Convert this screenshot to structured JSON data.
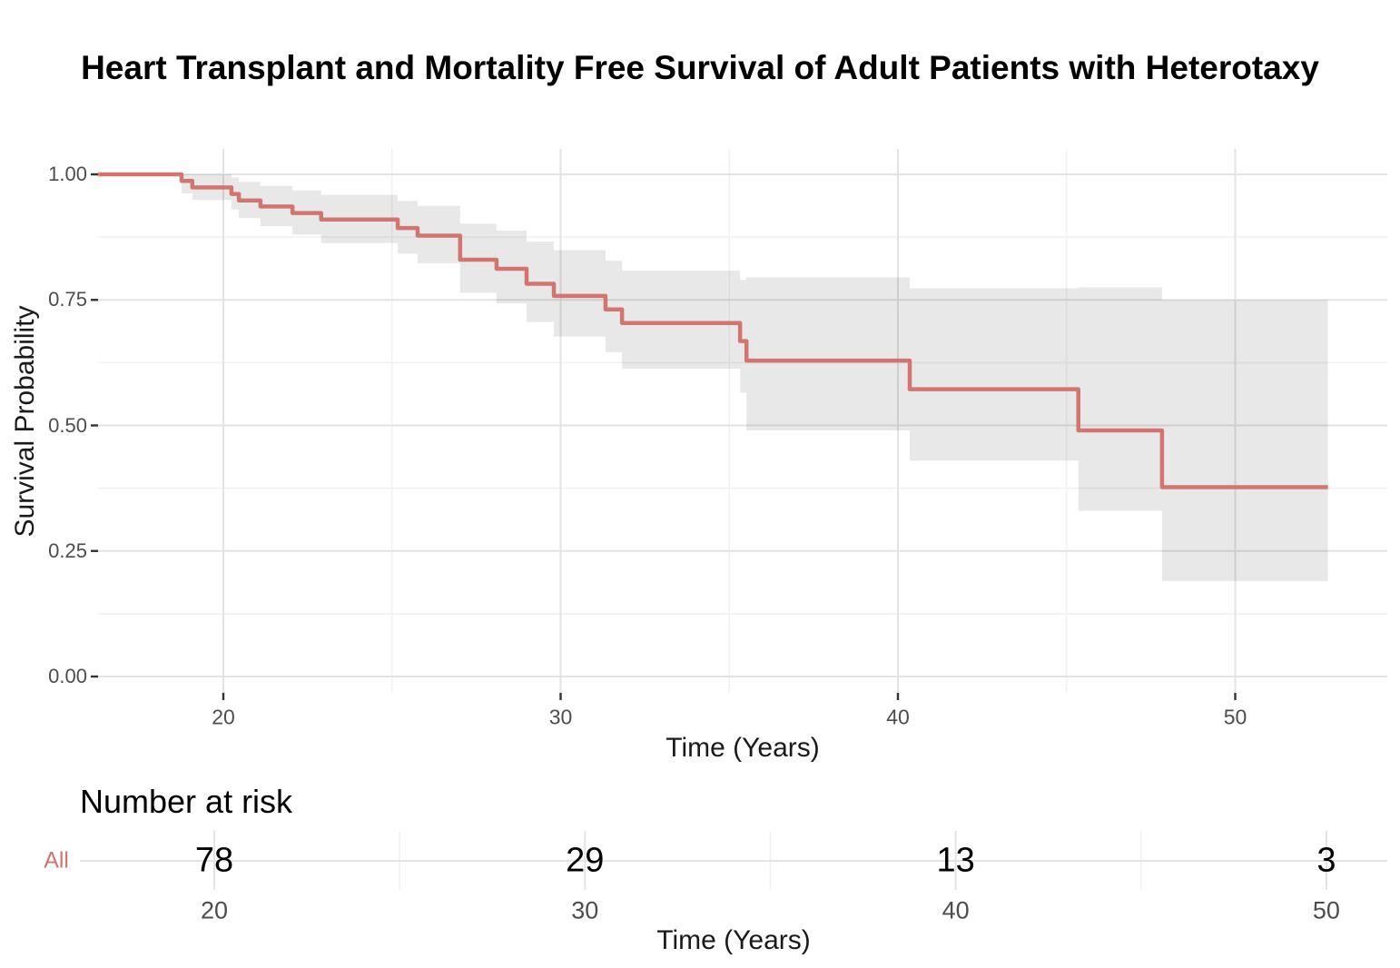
{
  "title": "Heart Transplant and Mortality Free Survival of Adult Patients with Heterotaxy",
  "colors": {
    "curve": "#D3756F",
    "ci_band_fill": "rgba(0,0,0,0.09)",
    "ci_band_hex": "#E7E7E7",
    "grid_major": "#E3E3E3",
    "grid_minor": "#F2F2F2",
    "tick_mark": "#333333",
    "tick_label": "#4D4D4D",
    "risk_row_label": "#D3756F"
  },
  "chart_data": {
    "type": "line",
    "subtype": "kaplan-meier-step",
    "title": "Heart Transplant and Mortality Free Survival of Adult Patients with Heterotaxy",
    "xlabel": "Time (Years)",
    "ylabel": "Survival Probability",
    "x_ticks": [
      20,
      30,
      40,
      50
    ],
    "x_minor": [
      25,
      35,
      45
    ],
    "y_ticks": [
      1.0,
      0.75,
      0.5,
      0.25,
      0.0
    ],
    "y_tick_labels": [
      "1.00",
      "0.75",
      "0.50",
      "0.25",
      "0.00"
    ],
    "y_minor": [
      0.875,
      0.625,
      0.375,
      0.125
    ],
    "xlim": [
      16.3,
      54.5
    ],
    "ylim": [
      0,
      1
    ],
    "grid": true,
    "legend": "none",
    "confidence_band": true,
    "end_time": 52.75,
    "steps": [
      {
        "time": 16.29,
        "surv": 1.0,
        "lower": 1.0,
        "upper": 1.0
      },
      {
        "time": 18.76,
        "surv": 0.987,
        "lower": 0.962,
        "upper": 1.0
      },
      {
        "time": 19.08,
        "surv": 0.974,
        "lower": 0.949,
        "upper": 1.0
      },
      {
        "time": 20.24,
        "surv": 0.961,
        "lower": 0.93,
        "upper": 0.994
      },
      {
        "time": 20.46,
        "surv": 0.948,
        "lower": 0.913,
        "upper": 0.985
      },
      {
        "time": 21.1,
        "surv": 0.936,
        "lower": 0.897,
        "upper": 0.977
      },
      {
        "time": 22.05,
        "surv": 0.923,
        "lower": 0.88,
        "upper": 0.968
      },
      {
        "time": 22.9,
        "surv": 0.91,
        "lower": 0.863,
        "upper": 0.959
      },
      {
        "time": 25.17,
        "surv": 0.893,
        "lower": 0.842,
        "upper": 0.947
      },
      {
        "time": 25.76,
        "surv": 0.878,
        "lower": 0.823,
        "upper": 0.937
      },
      {
        "time": 27.02,
        "surv": 0.83,
        "lower": 0.764,
        "upper": 0.902
      },
      {
        "time": 28.1,
        "surv": 0.812,
        "lower": 0.743,
        "upper": 0.888
      },
      {
        "time": 28.99,
        "surv": 0.782,
        "lower": 0.706,
        "upper": 0.866
      },
      {
        "time": 29.8,
        "surv": 0.758,
        "lower": 0.677,
        "upper": 0.849
      },
      {
        "time": 31.33,
        "surv": 0.731,
        "lower": 0.646,
        "upper": 0.828
      },
      {
        "time": 31.82,
        "surv": 0.704,
        "lower": 0.613,
        "upper": 0.808
      },
      {
        "time": 35.32,
        "surv": 0.668,
        "lower": 0.565,
        "upper": 0.79
      },
      {
        "time": 35.51,
        "surv": 0.629,
        "lower": 0.49,
        "upper": 0.795
      },
      {
        "time": 40.35,
        "surv": 0.572,
        "lower": 0.43,
        "upper": 0.773
      },
      {
        "time": 45.35,
        "surv": 0.49,
        "lower": 0.33,
        "upper": 0.775
      },
      {
        "time": 47.83,
        "surv": 0.377,
        "lower": 0.19,
        "upper": 0.75
      }
    ]
  },
  "risk_table": {
    "heading": "Number at risk",
    "row_label": "All",
    "times": [
      20,
      30,
      40,
      50
    ],
    "time_labels": [
      "20",
      "30",
      "40",
      "50"
    ],
    "counts": [
      "78",
      "29",
      "13",
      "3"
    ],
    "xlabel": "Time (Years)"
  }
}
